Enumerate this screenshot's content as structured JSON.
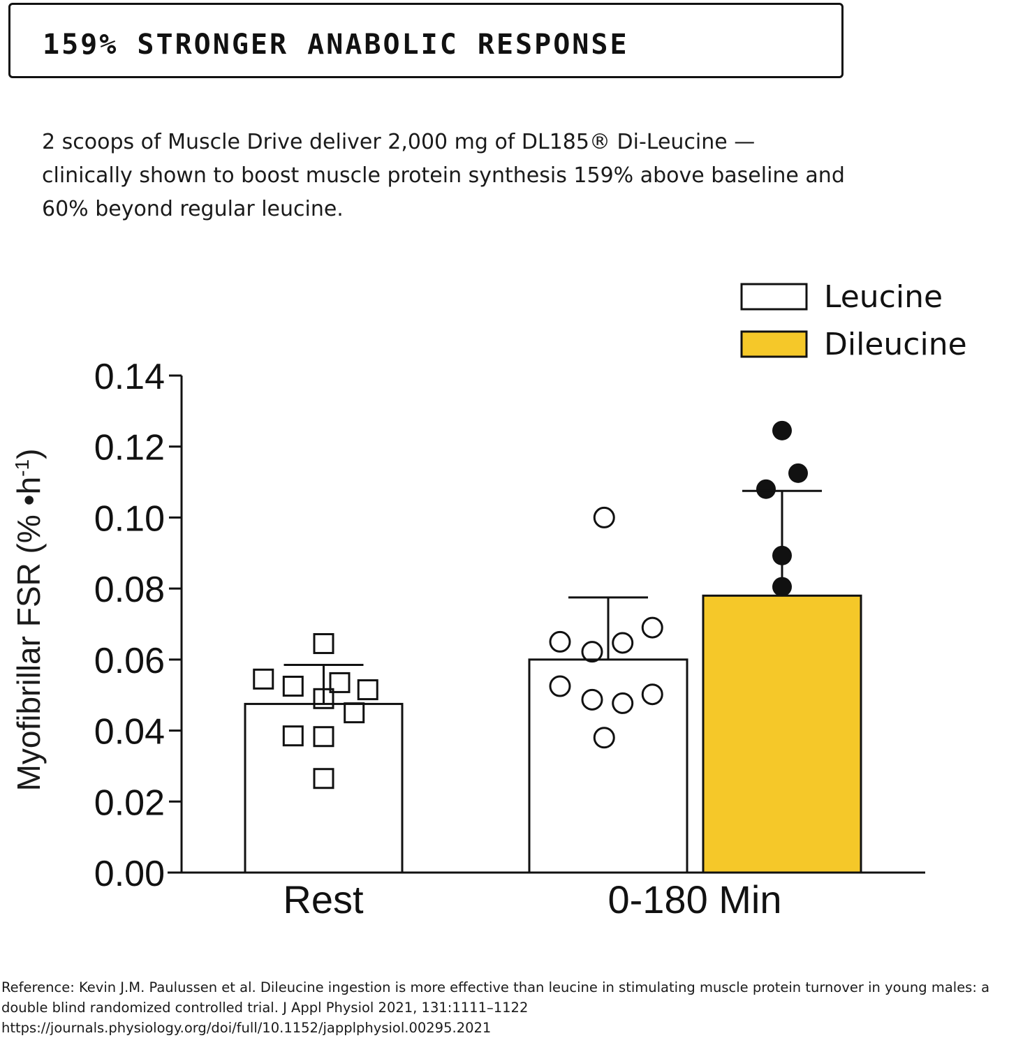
{
  "header": {
    "title": "159% STRONGER ANABOLIC RESPONSE"
  },
  "intro": {
    "text": "2 scoops of Muscle Drive deliver 2,000 mg of DL185® Di-Leucine — clinically shown to boost muscle protein synthesis 159% above baseline and 60% beyond regular leucine."
  },
  "reference": {
    "text": "Reference: Kevin J.M. Paulussen et al. Dileucine ingestion is more effective than leucine in stimulating muscle protein turnover in young males: a double blind randomized controlled trial. J Appl Physiol 2021, 131:1111–1122 https://journals.physiology.org/doi/full/10.1152/japplphysiol.00295.2021"
  },
  "chart_data": {
    "type": "bar",
    "ylabel": "Myofibrillar FSR (% •h⁻¹)",
    "ylabel_main": "Myofibrillar FSR (% •h",
    "ylabel_sup": "-1",
    "ylabel_close": ")",
    "ylim": [
      0,
      0.14
    ],
    "yticks": [
      "0.00",
      "0.02",
      "0.04",
      "0.06",
      "0.08",
      "0.10",
      "0.12",
      "0.14"
    ],
    "categories": [
      "Rest",
      "0-180 Min"
    ],
    "legend_position": "top-right",
    "grid": false,
    "colors": {
      "leucine_fill": "#ffffff",
      "dileucine_fill": "#f5c829",
      "stroke": "#111111"
    },
    "series": [
      {
        "name": "Leucine",
        "bars": [
          {
            "category": "Rest",
            "value": 0.0475,
            "error": 0.011,
            "marker": "square",
            "points": [
              {
                "x": 0,
                "y": 0.0645
              },
              {
                "x": -0.75,
                "y": 0.0545
              },
              {
                "x": -0.38,
                "y": 0.0525
              },
              {
                "x": 0.2,
                "y": 0.0535
              },
              {
                "x": 0.55,
                "y": 0.0515
              },
              {
                "x": 0,
                "y": 0.049
              },
              {
                "x": 0.38,
                "y": 0.045
              },
              {
                "x": -0.38,
                "y": 0.0385
              },
              {
                "x": 0,
                "y": 0.0383
              },
              {
                "x": 0,
                "y": 0.0265
              }
            ]
          },
          {
            "category": "0-180 Min",
            "value": 0.06,
            "error": 0.0175,
            "marker": "circle",
            "points": [
              {
                "x": -0.05,
                "y": 0.1
              },
              {
                "x": 0.55,
                "y": 0.069
              },
              {
                "x": -0.6,
                "y": 0.065
              },
              {
                "x": 0.18,
                "y": 0.0647
              },
              {
                "x": -0.2,
                "y": 0.0622
              },
              {
                "x": -0.6,
                "y": 0.0525
              },
              {
                "x": 0.55,
                "y": 0.0502
              },
              {
                "x": -0.2,
                "y": 0.0487
              },
              {
                "x": 0.18,
                "y": 0.0477
              },
              {
                "x": -0.05,
                "y": 0.038
              }
            ]
          }
        ]
      },
      {
        "name": "Dileucine",
        "bars": [
          {
            "category": "0-180 Min",
            "value": 0.078,
            "error": 0.0295,
            "marker": "filled-circle",
            "points": [
              {
                "x": 0,
                "y": 0.1245
              },
              {
                "x": 0.2,
                "y": 0.1125
              },
              {
                "x": -0.2,
                "y": 0.108
              },
              {
                "x": 0,
                "y": 0.0893
              },
              {
                "x": 0,
                "y": 0.0805
              }
            ]
          }
        ]
      }
    ]
  }
}
